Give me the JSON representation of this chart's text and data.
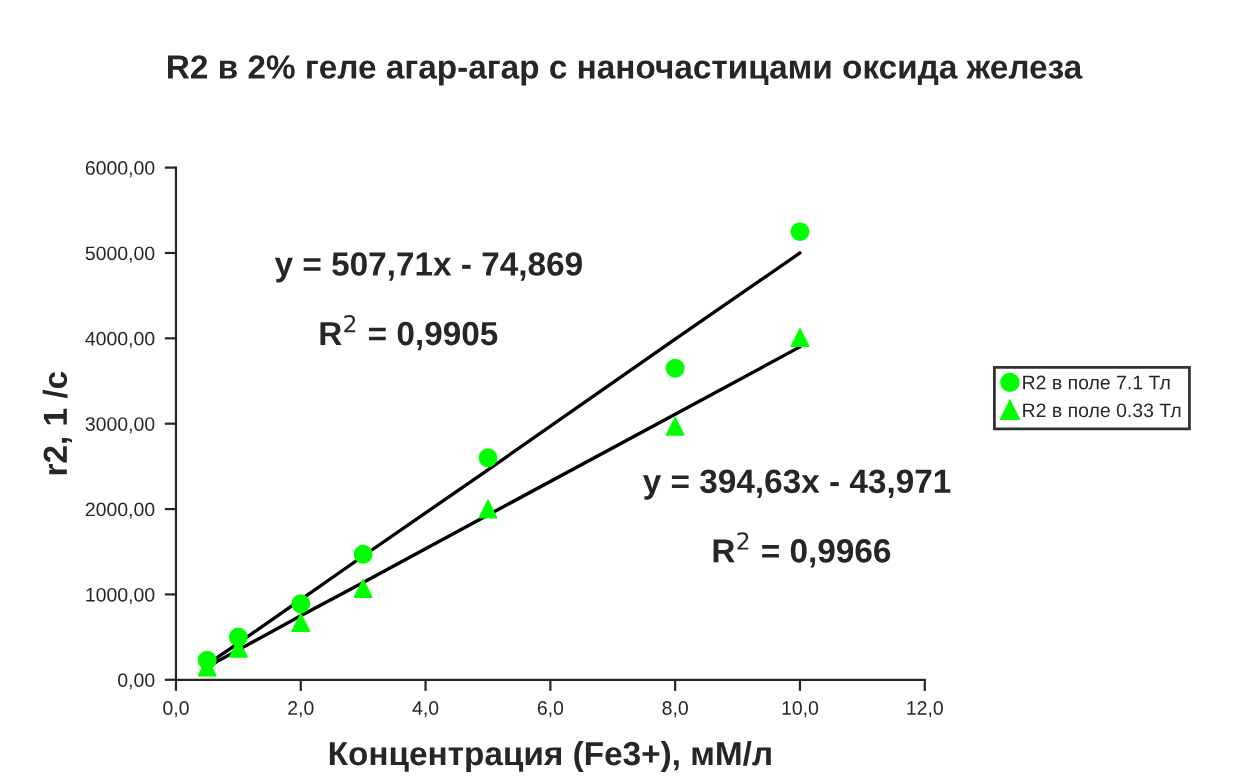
{
  "chart_data": {
    "type": "scatter",
    "title": "R2 в 2% геле агар-агар с наночастицами оксида железа",
    "xlabel": "Концентрация (Fe3+), мМ/л",
    "ylabel": "r2, 1 /c",
    "x": [
      0.5,
      1,
      2,
      3,
      5,
      8,
      10
    ],
    "series": [
      {
        "name": "R2 в поле 7.1 Тл",
        "color": "#00ff00",
        "marker": "circle",
        "values": [
          230,
          500,
          890,
          1470,
          2600,
          3650,
          5250
        ]
      },
      {
        "name": "R2 в поле 0.33 Тл",
        "color": "#00ff00",
        "marker": "triangle",
        "values": [
          150,
          370,
          670,
          1070,
          2000,
          2970,
          4010
        ]
      },
      {
        "type": "line",
        "color": "#000000",
        "marker": "none",
        "values": [
          180,
          430,
          940,
          1450,
          2460,
          3990,
          5000
        ]
      },
      {
        "type": "line",
        "color": "#000000",
        "marker": "none",
        "values": [
          150,
          350,
          750,
          1140,
          1930,
          3110,
          3900
        ]
      }
    ],
    "annotations": [
      "y = 507,71x - 74,869",
      "R$^{2}$ = 0,9905",
      "y = 394,63x - 43,971",
      "R$^{2}$ = 0,9966"
    ],
    "xlim": [
      0,
      12
    ],
    "ylim": [
      0,
      6000
    ],
    "xticks": [
      {
        "value": 0,
        "label": "0,0"
      },
      {
        "value": 2,
        "label": "2,0"
      },
      {
        "value": 4,
        "label": "4,0"
      },
      {
        "value": 6,
        "label": "6,0"
      },
      {
        "value": 8,
        "label": "8,0"
      },
      {
        "value": 10,
        "label": "10,0"
      },
      {
        "value": 12,
        "label": "12,0"
      }
    ],
    "yticks": [
      {
        "value": 0,
        "label": "0,00"
      },
      {
        "value": 1000,
        "label": "1000,00"
      },
      {
        "value": 2000,
        "label": "2000,00"
      },
      {
        "value": 3000,
        "label": "3000,00"
      },
      {
        "value": 4000,
        "label": "4000,00"
      },
      {
        "value": 5000,
        "label": "5000,00"
      },
      {
        "value": 6000,
        "label": "6000,00"
      }
    ],
    "grid": false,
    "legend": "right"
  }
}
